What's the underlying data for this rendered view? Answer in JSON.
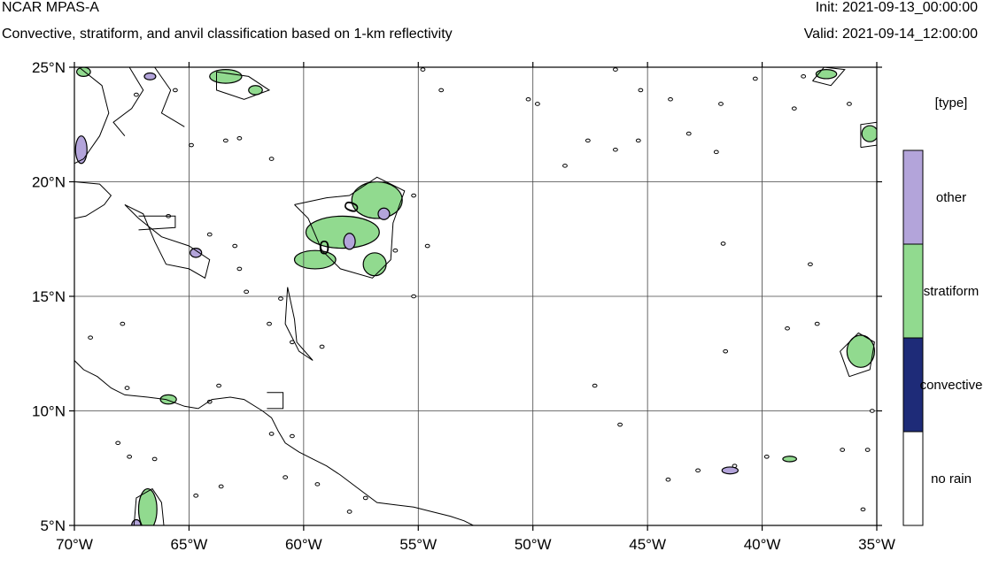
{
  "header": {
    "title": "NCAR MPAS-A",
    "subtitle": "Convective, stratiform, and anvil classification based on 1-km reflectivity",
    "init": "Init: 2021-09-13_00:00:00",
    "valid": "Valid: 2021-09-14_12:00:00"
  },
  "map": {
    "lon_range": [
      -70,
      -35
    ],
    "lat_range": [
      5,
      25
    ],
    "lon_ticks": [
      -70,
      -65,
      -60,
      -55,
      -50,
      -45,
      -40,
      -35
    ],
    "lat_ticks": [
      5,
      10,
      15,
      20,
      25
    ],
    "lon_labels": [
      "70°W",
      "65°W",
      "60°W",
      "55°W",
      "50°W",
      "45°W",
      "40°W",
      "35°W"
    ],
    "lat_labels": [
      "5°N",
      "10°N",
      "15°N",
      "20°N",
      "25°N"
    ],
    "contour_label": "0",
    "coastline": [
      [
        -70,
        12.2
      ],
      [
        -69.6,
        11.8
      ],
      [
        -69.0,
        11.5
      ],
      [
        -68.4,
        11.0
      ],
      [
        -67.8,
        10.7
      ],
      [
        -66.8,
        10.6
      ],
      [
        -66.0,
        10.5
      ],
      [
        -65.2,
        10.2
      ],
      [
        -64.6,
        10.1
      ],
      [
        -64.0,
        10.5
      ],
      [
        -63.2,
        10.6
      ],
      [
        -62.6,
        10.5
      ],
      [
        -61.8,
        10.0
      ],
      [
        -61.4,
        9.7
      ],
      [
        -61.1,
        9.1
      ],
      [
        -60.8,
        8.6
      ],
      [
        -60.2,
        8.2
      ],
      [
        -59.6,
        7.9
      ],
      [
        -59.0,
        7.6
      ],
      [
        -58.4,
        7.2
      ],
      [
        -57.6,
        6.6
      ],
      [
        -56.8,
        6.0
      ],
      [
        -56.0,
        5.9
      ],
      [
        -55.2,
        5.8
      ],
      [
        -54.4,
        5.6
      ],
      [
        -53.6,
        5.4
      ],
      [
        -53.0,
        5.2
      ],
      [
        -52.6,
        5.0
      ]
    ],
    "islands": [
      [
        [
          -70,
          20.0
        ],
        [
          -68.9,
          19.9
        ],
        [
          -68.4,
          19.4
        ],
        [
          -68.7,
          19.0
        ],
        [
          -69.5,
          18.5
        ],
        [
          -70,
          18.4
        ]
      ],
      [
        [
          -67.2,
          18.5
        ],
        [
          -65.6,
          18.5
        ],
        [
          -65.6,
          18.0
        ],
        [
          -67.2,
          17.9
        ]
      ],
      [
        [
          -61.6,
          10.8
        ],
        [
          -60.9,
          10.8
        ],
        [
          -60.9,
          10.1
        ],
        [
          -61.6,
          10.1
        ]
      ]
    ],
    "features": [
      {
        "lon": -58.3,
        "lat": 17.8,
        "rx": 1.6,
        "ry": 0.7,
        "type": "stratiform"
      },
      {
        "lon": -56.8,
        "lat": 19.2,
        "rx": 1.1,
        "ry": 0.8,
        "type": "stratiform"
      },
      {
        "lon": -59.5,
        "lat": 16.6,
        "rx": 0.9,
        "ry": 0.4,
        "type": "stratiform"
      },
      {
        "lon": -56.9,
        "lat": 16.4,
        "rx": 0.5,
        "ry": 0.5,
        "type": "stratiform"
      },
      {
        "lon": -58.0,
        "lat": 17.4,
        "rx": 0.25,
        "ry": 0.35,
        "type": "other"
      },
      {
        "lon": -56.5,
        "lat": 18.6,
        "rx": 0.25,
        "ry": 0.25,
        "type": "other"
      },
      {
        "lon": -66.8,
        "lat": 5.7,
        "rx": 0.4,
        "ry": 0.9,
        "type": "stratiform"
      },
      {
        "lon": -67.3,
        "lat": 5.0,
        "rx": 0.2,
        "ry": 0.25,
        "type": "other"
      },
      {
        "lon": -65.9,
        "lat": 10.5,
        "rx": 0.35,
        "ry": 0.2,
        "type": "stratiform"
      },
      {
        "lon": -69.7,
        "lat": 21.4,
        "rx": 0.25,
        "ry": 0.6,
        "type": "other"
      },
      {
        "lon": -69.6,
        "lat": 24.8,
        "rx": 0.3,
        "ry": 0.2,
        "type": "stratiform"
      },
      {
        "lon": -63.4,
        "lat": 24.6,
        "rx": 0.7,
        "ry": 0.3,
        "type": "stratiform"
      },
      {
        "lon": -62.1,
        "lat": 24.0,
        "rx": 0.3,
        "ry": 0.2,
        "type": "stratiform"
      },
      {
        "lon": -64.7,
        "lat": 16.9,
        "rx": 0.25,
        "ry": 0.2,
        "type": "other"
      },
      {
        "lon": -66.7,
        "lat": 24.6,
        "rx": 0.25,
        "ry": 0.15,
        "type": "other"
      },
      {
        "lon": -35.7,
        "lat": 12.6,
        "rx": 0.6,
        "ry": 0.7,
        "type": "stratiform"
      },
      {
        "lon": -35.3,
        "lat": 22.1,
        "rx": 0.35,
        "ry": 0.35,
        "type": "stratiform"
      },
      {
        "lon": -37.2,
        "lat": 24.7,
        "rx": 0.45,
        "ry": 0.2,
        "type": "stratiform"
      },
      {
        "lon": -41.4,
        "lat": 7.4,
        "rx": 0.35,
        "ry": 0.15,
        "type": "other"
      },
      {
        "lon": -38.8,
        "lat": 7.9,
        "rx": 0.3,
        "ry": 0.12,
        "type": "stratiform"
      }
    ],
    "contours": [
      [
        [
          -69.8,
          25.0
        ],
        [
          -68.8,
          24.2
        ],
        [
          -68.5,
          23.0
        ],
        [
          -68.9,
          22.0
        ],
        [
          -69.6,
          21.0
        ],
        [
          -70,
          20.8
        ]
      ],
      [
        [
          -67.6,
          25.0
        ],
        [
          -67.0,
          24.0
        ],
        [
          -67.5,
          23.2
        ],
        [
          -68.3,
          22.6
        ],
        [
          -67.8,
          22.0
        ]
      ],
      [
        [
          -66.5,
          25.0
        ],
        [
          -65.8,
          24.0
        ],
        [
          -66.2,
          23.0
        ],
        [
          -65.2,
          22.4
        ]
      ],
      [
        [
          -63.8,
          24.8
        ],
        [
          -62.4,
          24.6
        ],
        [
          -61.5,
          24.0
        ],
        [
          -62.6,
          23.6
        ],
        [
          -63.8,
          24.0
        ],
        [
          -63.8,
          24.8
        ]
      ],
      [
        [
          -60.4,
          19.0
        ],
        [
          -59.8,
          18.4
        ],
        [
          -59.2,
          17.0
        ],
        [
          -58.4,
          16.2
        ],
        [
          -57.0,
          15.8
        ],
        [
          -56.2,
          16.6
        ],
        [
          -56.1,
          18.2
        ],
        [
          -55.6,
          19.6
        ],
        [
          -56.8,
          20.2
        ],
        [
          -58.0,
          19.4
        ],
        [
          -59.0,
          19.3
        ],
        [
          -60.4,
          19.0
        ]
      ],
      [
        [
          -60.7,
          15.4
        ],
        [
          -60.4,
          14.0
        ],
        [
          -60.3,
          13.0
        ],
        [
          -59.6,
          12.2
        ],
        [
          -60.2,
          12.6
        ],
        [
          -60.8,
          13.8
        ],
        [
          -60.7,
          15.4
        ]
      ],
      [
        [
          -67.8,
          19.0
        ],
        [
          -67.0,
          18.6
        ],
        [
          -66.5,
          17.4
        ],
        [
          -66.0,
          16.4
        ],
        [
          -65.0,
          16.2
        ],
        [
          -64.3,
          15.8
        ],
        [
          -64.1,
          16.6
        ],
        [
          -65.0,
          17.2
        ],
        [
          -66.2,
          17.6
        ],
        [
          -67.2,
          18.4
        ],
        [
          -67.8,
          19.0
        ]
      ],
      [
        [
          -67.4,
          5.0
        ],
        [
          -67.3,
          6.2
        ],
        [
          -66.6,
          6.6
        ],
        [
          -66.2,
          6.0
        ],
        [
          -66.1,
          5.0
        ]
      ],
      [
        [
          -36.2,
          11.5
        ],
        [
          -36.6,
          12.6
        ],
        [
          -35.8,
          13.4
        ],
        [
          -35.1,
          13.0
        ],
        [
          -35.3,
          11.8
        ],
        [
          -36.2,
          11.5
        ]
      ],
      [
        [
          -35.7,
          21.5
        ],
        [
          -35.7,
          22.5
        ],
        [
          -35.0,
          22.6
        ],
        [
          -35.0,
          21.6
        ],
        [
          -35.7,
          21.5
        ]
      ],
      [
        [
          -37.8,
          24.4
        ],
        [
          -37.3,
          25.0
        ],
        [
          -36.4,
          24.9
        ],
        [
          -37.0,
          24.2
        ],
        [
          -37.8,
          24.4
        ]
      ]
    ],
    "specks": [
      [
        -67.3,
        23.8
      ],
      [
        -65.6,
        24.0
      ],
      [
        -64.9,
        21.6
      ],
      [
        -63.4,
        21.8
      ],
      [
        -62.8,
        21.9
      ],
      [
        -61.4,
        21.0
      ],
      [
        -65.9,
        18.5
      ],
      [
        -64.1,
        17.7
      ],
      [
        -63.0,
        17.2
      ],
      [
        -62.8,
        16.2
      ],
      [
        -62.5,
        15.2
      ],
      [
        -61.0,
        14.9
      ],
      [
        -61.5,
        13.8
      ],
      [
        -60.5,
        13.0
      ],
      [
        -59.2,
        12.8
      ],
      [
        -67.9,
        13.8
      ],
      [
        -69.3,
        13.2
      ],
      [
        -67.7,
        11.0
      ],
      [
        -64.1,
        10.4
      ],
      [
        -63.7,
        11.1
      ],
      [
        -61.4,
        9.0
      ],
      [
        -60.5,
        8.9
      ],
      [
        -68.1,
        8.6
      ],
      [
        -67.6,
        8.0
      ],
      [
        -66.5,
        7.9
      ],
      [
        -64.7,
        6.3
      ],
      [
        -63.6,
        6.7
      ],
      [
        -60.8,
        7.1
      ],
      [
        -59.4,
        6.8
      ],
      [
        -58.0,
        5.6
      ],
      [
        -57.3,
        6.2
      ],
      [
        -55.2,
        19.4
      ],
      [
        -54.6,
        17.2
      ],
      [
        -56.0,
        17.0
      ],
      [
        -54.8,
        24.9
      ],
      [
        -54.0,
        24.0
      ],
      [
        -50.2,
        23.6
      ],
      [
        -49.8,
        23.4
      ],
      [
        -46.4,
        24.9
      ],
      [
        -45.3,
        24.0
      ],
      [
        -44.0,
        23.6
      ],
      [
        -48.6,
        20.7
      ],
      [
        -47.6,
        21.8
      ],
      [
        -46.4,
        21.4
      ],
      [
        -45.4,
        21.8
      ],
      [
        -43.2,
        22.1
      ],
      [
        -42.0,
        21.3
      ],
      [
        -41.8,
        23.4
      ],
      [
        -40.3,
        24.5
      ],
      [
        -38.2,
        24.6
      ],
      [
        -38.6,
        23.2
      ],
      [
        -36.2,
        23.4
      ],
      [
        -41.7,
        17.3
      ],
      [
        -37.9,
        16.4
      ],
      [
        -38.9,
        13.6
      ],
      [
        -37.6,
        13.8
      ],
      [
        -41.6,
        12.6
      ],
      [
        -47.3,
        11.1
      ],
      [
        -46.2,
        9.4
      ],
      [
        -41.2,
        7.6
      ],
      [
        -42.8,
        7.4
      ],
      [
        -44.1,
        7.0
      ],
      [
        -39.8,
        8.0
      ],
      [
        -35.4,
        8.3
      ],
      [
        -36.5,
        8.3
      ],
      [
        -35.6,
        5.7
      ],
      [
        -35.2,
        10.0
      ],
      [
        -55.2,
        15.0
      ]
    ],
    "zero_labels": [
      {
        "lon": -59.1,
        "lat": 17.1,
        "rot": 0
      },
      {
        "lon": -57.9,
        "lat": 18.9,
        "rot": -70
      }
    ]
  },
  "legend": {
    "title": "[type]",
    "items": [
      {
        "label": "other",
        "color": "#b3a4da"
      },
      {
        "label": "stratiform",
        "color": "#91da8f"
      },
      {
        "label": "convective",
        "color": "#1e2b78"
      },
      {
        "label": "no rain",
        "color": "#ffffff"
      }
    ]
  }
}
